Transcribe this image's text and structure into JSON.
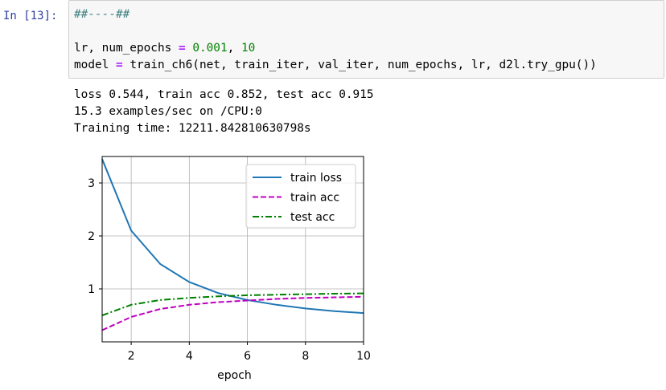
{
  "cell": {
    "prompt": "In [13]:",
    "code": {
      "line1_comment": "##----##",
      "line2_a": "lr, num_epochs ",
      "line2_eq": "=",
      "line2_b": " ",
      "line2_num1": "0.001",
      "line2_c": ", ",
      "line2_num2": "10",
      "line3_a": "model ",
      "line3_eq": "=",
      "line3_b": " train_ch6(net, train_iter, val_iter, num_epochs, lr, d2l.try_gpu())"
    }
  },
  "output": {
    "line1": "loss 0.544, train acc 0.852, test acc 0.915",
    "line2": "15.3 examples/sec on /CPU:0",
    "line3": "Training time: 12211.842810630798s"
  },
  "colors": {
    "train_loss": "#1f77b4",
    "train_acc": "#bf00bf",
    "test_acc": "#008000"
  },
  "chart_data": {
    "type": "line",
    "xlabel": "epoch",
    "ylabel": "",
    "xlim": [
      1,
      10
    ],
    "ylim": [
      0.0,
      3.5
    ],
    "xticks": [
      2,
      4,
      6,
      8,
      10
    ],
    "yticks": [
      1,
      2,
      3
    ],
    "grid": true,
    "legend_position": "top-right",
    "x": [
      1,
      2,
      3,
      4,
      5,
      6,
      7,
      8,
      9,
      10
    ],
    "series": [
      {
        "name": "train loss",
        "style": "solid",
        "values": [
          3.45,
          2.1,
          1.47,
          1.13,
          0.92,
          0.79,
          0.7,
          0.63,
          0.58,
          0.544
        ]
      },
      {
        "name": "train acc",
        "style": "dashed",
        "values": [
          0.22,
          0.47,
          0.62,
          0.7,
          0.75,
          0.78,
          0.81,
          0.83,
          0.84,
          0.852
        ]
      },
      {
        "name": "test acc",
        "style": "dashdot",
        "values": [
          0.5,
          0.7,
          0.79,
          0.83,
          0.86,
          0.88,
          0.89,
          0.9,
          0.91,
          0.915
        ]
      }
    ]
  }
}
